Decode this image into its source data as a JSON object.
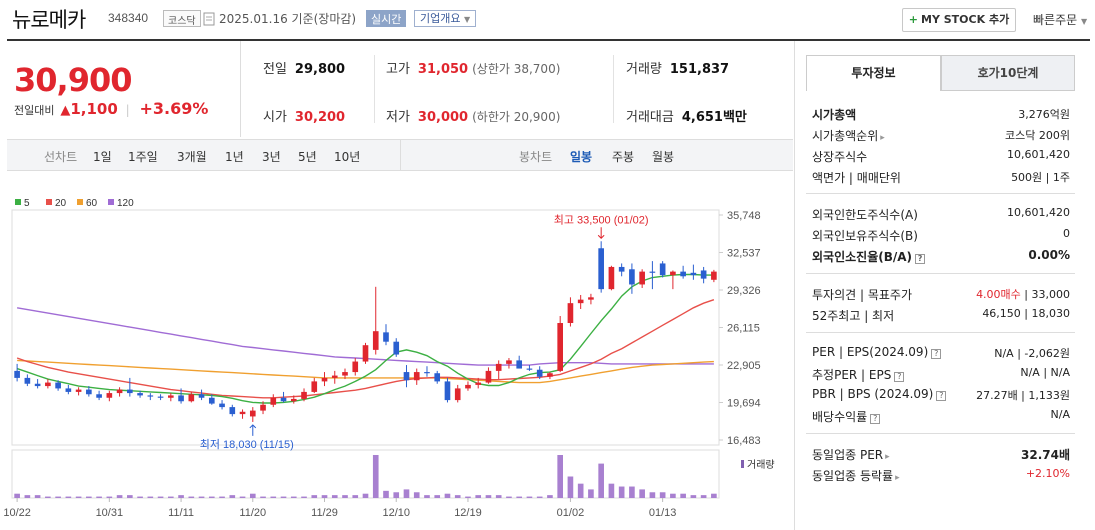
{
  "header": {
    "name": "뉴로메카",
    "code": "348340",
    "market_tag": "코스닥",
    "date": "2025.01.16  기준(장마감)",
    "live_tag": "실시간",
    "info_tag": "기업개요",
    "mystock_label": "MY STOCK 추가",
    "quick_order_label": "빠른주문"
  },
  "summary": {
    "price": "30,900",
    "change_label": "전일대비",
    "change_value": "1,100",
    "change_pct": "+3.69%",
    "prev_close_label": "전일",
    "prev_close": "29,800",
    "open_label": "시가",
    "open": "30,200",
    "high_label": "고가",
    "high": "31,050",
    "upper_limit": "(상한가 38,700)",
    "low_label": "저가",
    "low": "30,000",
    "lower_limit": "(하한가 20,900)",
    "volume_label": "거래량",
    "volume": "151,837",
    "amount_label": "거래대금",
    "amount": "4,651",
    "amount_unit": "백만"
  },
  "toolbar": {
    "line_label": "선차트",
    "ranges": [
      "1일",
      "1주일",
      "3개월",
      "1년",
      "3년",
      "5년",
      "10년"
    ],
    "candle_label": "봉차트",
    "candles": [
      "일봉",
      "주봉",
      "월봉"
    ],
    "selected_candle": "일봉"
  },
  "right_panel": {
    "tab_active": "투자정보",
    "tab_inactive": "호가10단계",
    "rows": {
      "mktcap_k": "시가총액",
      "mktcap_v": "3,276억원",
      "rank_k": "시가총액순위",
      "rank_v": "코스닥 200위",
      "shares_k": "상장주식수",
      "shares_v": "10,601,420",
      "par_k": "액면가 | 매매단위",
      "par_v": "500원 | 1주",
      "foreign_limit_k": "외국인한도주식수(A)",
      "foreign_limit_v": "10,601,420",
      "foreign_hold_k": "외국인보유주식수(B)",
      "foreign_hold_v": "0",
      "foreign_ratio_k": "외국인소진율(B/A)",
      "foreign_ratio_v": "0.00%",
      "opinion_k": "투자의견 | 목표주가",
      "opinion_v": "4.00매수",
      "target_v": " | 33,000",
      "wk52_k": "52주최고 | 최저",
      "wk52_v": "46,150 | 18,030",
      "per_k": "PER | EPS(2024.09)",
      "per_v": "N/A | -2,062원",
      "est_k": "추정PER | EPS",
      "est_v": "N/A | N/A",
      "pbr_k": "PBR | BPS (2024.09)",
      "pbr_v": "27.27배 | 1,133원",
      "div_k": "배당수익률",
      "div_v": "N/A",
      "sector_per_k": "동일업종 PER",
      "sector_per_v": "32.74배",
      "sector_rate_k": "동일업종 등락률",
      "sector_rate_v": "+2.10%"
    }
  },
  "chart_data": {
    "type": "candlestick",
    "legend": [
      {
        "name": "5",
        "color": "#3cb043"
      },
      {
        "name": "20",
        "color": "#e8504a"
      },
      {
        "name": "60",
        "color": "#f0a030"
      },
      {
        "name": "120",
        "color": "#a06cd5"
      }
    ],
    "y_ticks": [
      "35,748",
      "32,537",
      "29,326",
      "26,115",
      "22,905",
      "19,694",
      "16,483"
    ],
    "ylim": [
      16483,
      35748
    ],
    "x_ticks": [
      "10/22",
      "10/31",
      "11/11",
      "11/20",
      "11/29",
      "12/10",
      "12/19",
      "01/02",
      "01/13"
    ],
    "high_annotation": "최고 33,500 (01/02)",
    "low_annotation": "최저 18,030 (11/15)",
    "volume_label": "거래량",
    "up_color": "#e0262e",
    "down_color": "#2a5fd0",
    "candles": [
      [
        22400,
        23000,
        21500,
        21800
      ],
      [
        21800,
        22100,
        21100,
        21300
      ],
      [
        21300,
        21700,
        20900,
        21100
      ],
      [
        21100,
        21700,
        20900,
        21400
      ],
      [
        21400,
        21600,
        20700,
        20900
      ],
      [
        20900,
        21200,
        20400,
        20600
      ],
      [
        20600,
        21000,
        20300,
        20800
      ],
      [
        20800,
        21100,
        20200,
        20400
      ],
      [
        20400,
        20700,
        19900,
        20100
      ],
      [
        20100,
        20700,
        19800,
        20500
      ],
      [
        20500,
        21000,
        20200,
        20800
      ],
      [
        20800,
        21800,
        20200,
        20500
      ],
      [
        20500,
        20700,
        20100,
        20300
      ],
      [
        20300,
        20500,
        19900,
        20200
      ],
      [
        20200,
        20400,
        19900,
        20100
      ],
      [
        20100,
        20500,
        19800,
        20300
      ],
      [
        20300,
        20900,
        19600,
        19800
      ],
      [
        19800,
        20600,
        19700,
        20400
      ],
      [
        20400,
        20800,
        19900,
        20100
      ],
      [
        20100,
        20400,
        19500,
        19600
      ],
      [
        19600,
        19900,
        19100,
        19300
      ],
      [
        19300,
        19500,
        18500,
        18700
      ],
      [
        18700,
        19100,
        18300,
        18900
      ],
      [
        18500,
        19300,
        18030,
        19000
      ],
      [
        19000,
        19800,
        18700,
        19500
      ],
      [
        19500,
        20400,
        19300,
        20100
      ],
      [
        20100,
        20600,
        19700,
        19800
      ],
      [
        19800,
        20300,
        19600,
        20000
      ],
      [
        20000,
        20900,
        19800,
        20600
      ],
      [
        20600,
        21800,
        20500,
        21500
      ],
      [
        21500,
        22300,
        21100,
        21800
      ],
      [
        21800,
        22400,
        21300,
        22000
      ],
      [
        22000,
        22600,
        21700,
        22300
      ],
      [
        22300,
        23500,
        22000,
        23200
      ],
      [
        23200,
        24800,
        23000,
        24600
      ],
      [
        24200,
        29600,
        23800,
        25800
      ],
      [
        25700,
        26400,
        24600,
        24900
      ],
      [
        24900,
        25200,
        23600,
        23800
      ],
      [
        22300,
        22900,
        21000,
        21600
      ],
      [
        21600,
        22600,
        21200,
        22300
      ],
      [
        22300,
        22800,
        21900,
        22200
      ],
      [
        22200,
        22400,
        21300,
        21500
      ],
      [
        21500,
        21800,
        19700,
        19900
      ],
      [
        19900,
        21200,
        19700,
        20900
      ],
      [
        20900,
        21500,
        20700,
        21200
      ],
      [
        21200,
        21800,
        20900,
        21400
      ],
      [
        21400,
        22700,
        21300,
        22400
      ],
      [
        22400,
        23300,
        21700,
        23000
      ],
      [
        23000,
        23500,
        22600,
        23300
      ],
      [
        23300,
        23700,
        22700,
        22600
      ],
      [
        22600,
        22900,
        22400,
        22500
      ],
      [
        22500,
        22800,
        21700,
        21900
      ],
      [
        21900,
        22300,
        21700,
        22200
      ],
      [
        22400,
        27100,
        22300,
        26500
      ],
      [
        26500,
        28700,
        26200,
        28200
      ],
      [
        28200,
        28900,
        27700,
        28500
      ],
      [
        28500,
        29000,
        28100,
        28700
      ],
      [
        32900,
        33500,
        29100,
        29400
      ],
      [
        29400,
        31400,
        29300,
        31300
      ],
      [
        31300,
        31600,
        30500,
        30900
      ],
      [
        31100,
        31600,
        29000,
        29800
      ],
      [
        29800,
        31100,
        29500,
        30900
      ],
      [
        30900,
        31800,
        29400,
        30800
      ],
      [
        31600,
        31800,
        30400,
        30600
      ],
      [
        30600,
        31000,
        29400,
        30900
      ],
      [
        30900,
        31400,
        30300,
        30500
      ],
      [
        30800,
        31500,
        30200,
        30600
      ],
      [
        31000,
        31300,
        29900,
        30300
      ],
      [
        30200,
        31050,
        30000,
        30900
      ]
    ],
    "volumes": [
      3,
      2,
      2,
      1,
      1,
      1,
      1,
      1,
      1,
      1,
      2,
      2,
      1,
      1,
      1,
      1,
      2,
      1,
      1,
      1,
      1,
      2,
      1,
      3,
      1,
      1,
      1,
      1,
      1,
      2,
      2,
      2,
      2,
      2,
      3,
      30,
      5,
      4,
      6,
      4,
      2,
      2,
      3,
      2,
      1,
      2,
      2,
      2,
      1,
      1,
      1,
      1,
      2,
      30,
      15,
      10,
      6,
      24,
      10,
      8,
      8,
      6,
      4,
      4,
      3,
      3,
      2,
      2,
      3
    ],
    "ma5": [
      22600,
      22300,
      22000,
      21700,
      21500,
      21300,
      21100,
      21000,
      20900,
      20800,
      20750,
      20700,
      20650,
      20600,
      20550,
      20500,
      20450,
      20400,
      20350,
      20300,
      20200,
      20050,
      19850,
      19700,
      19650,
      19650,
      19700,
      19800,
      19950,
      20150,
      20450,
      20800,
      21100,
      21500,
      21950,
      22500,
      23300,
      24000,
      24200,
      24000,
      23700,
      23200,
      22800,
      22200,
      21700,
      21300,
      21150,
      21150,
      21400,
      21800,
      22100,
      22250,
      22300,
      22500,
      23400,
      24500,
      25600,
      26700,
      27700,
      28800,
      29600,
      30100,
      30400,
      30500,
      30600,
      30650,
      30650,
      30600,
      30600
    ],
    "ma20": [
      23500,
      23200,
      22950,
      22700,
      22500,
      22300,
      22150,
      22000,
      21850,
      21700,
      21550,
      21400,
      21250,
      21100,
      20950,
      20800,
      20700,
      20600,
      20500,
      20400,
      20300,
      20250,
      20200,
      20150,
      20100,
      20100,
      20150,
      20200,
      20250,
      20350,
      20450,
      20550,
      20650,
      20750,
      20900,
      21100,
      21300,
      21500,
      21650,
      21750,
      21800,
      21850,
      21850,
      21800,
      21750,
      21700,
      21650,
      21650,
      21700,
      21750,
      21800,
      21850,
      21950,
      22100,
      22400,
      22700,
      23000,
      23400,
      23900,
      24300,
      24800,
      25300,
      25800,
      26300,
      26800,
      27300,
      27800,
      28200,
      28500
    ],
    "ma60": [
      23300,
      23250,
      23200,
      23150,
      23100,
      23050,
      23000,
      22950,
      22900,
      22850,
      22800,
      22750,
      22700,
      22650,
      22600,
      22550,
      22500,
      22450,
      22400,
      22350,
      22300,
      22250,
      22200,
      22150,
      22100,
      22050,
      22000,
      21950,
      21900,
      21850,
      21800,
      21800,
      21800,
      21800,
      21800,
      21800,
      21800,
      21800,
      21800,
      21800,
      21800,
      21800,
      21750,
      21700,
      21650,
      21600,
      21550,
      21500,
      21450,
      21400,
      21400,
      21400,
      21500,
      21650,
      21800,
      21950,
      22100,
      22250,
      22400,
      22550,
      22700,
      22800,
      22900,
      22950,
      23000,
      23050,
      23100,
      23150,
      23200
    ],
    "ma120": [
      27800,
      27650,
      27500,
      27350,
      27200,
      27050,
      26900,
      26750,
      26600,
      26450,
      26300,
      26150,
      26000,
      25850,
      25700,
      25550,
      25400,
      25250,
      25100,
      24950,
      24800,
      24650,
      24500,
      24400,
      24300,
      24200,
      24100,
      24000,
      23900,
      23800,
      23700,
      23600,
      23550,
      23500,
      23450,
      23400,
      23350,
      23300,
      23250,
      23200,
      23150,
      23100,
      23050,
      23000,
      22950,
      22900,
      22900,
      22900,
      22900,
      22900,
      22900,
      23000,
      23050,
      23100,
      23100,
      23100,
      23100,
      23050,
      23000,
      23000,
      23000,
      23000,
      23000,
      23000,
      23000,
      23000,
      23000,
      23000,
      23000
    ]
  }
}
